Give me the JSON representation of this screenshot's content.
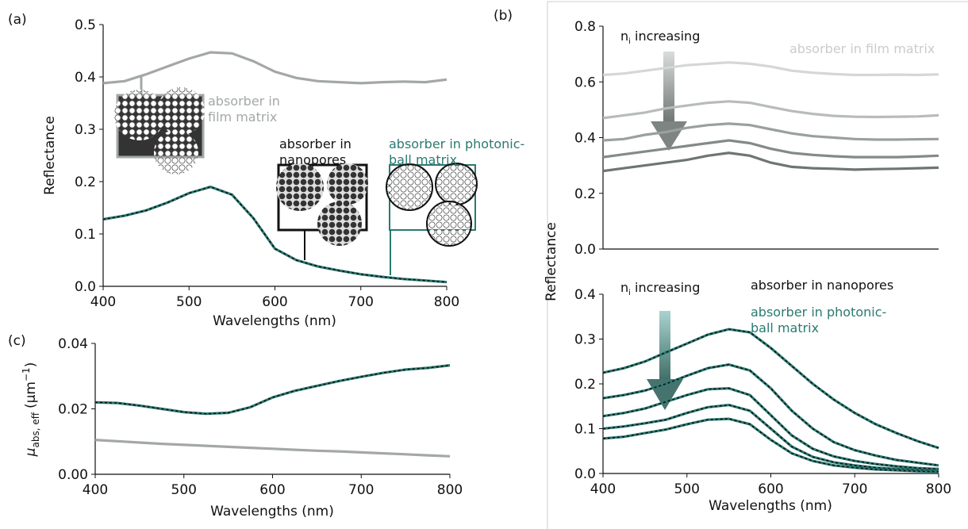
{
  "chart_data": [
    {
      "type": "line",
      "panel_label": "(a)",
      "xlabel": "Wavelengths (nm)",
      "ylabel": "Reflectance",
      "x": [
        400,
        425,
        450,
        475,
        500,
        525,
        550,
        575,
        600,
        625,
        650,
        675,
        700,
        725,
        750,
        775,
        800
      ],
      "xlim": [
        400,
        800
      ],
      "xticks": [
        400,
        500,
        600,
        700,
        800
      ],
      "ylim": [
        0,
        0.5
      ],
      "yticks": [
        {
          "value": 0,
          "label": "0.0"
        },
        0.1,
        0.2,
        0.3,
        0.4,
        0.5
      ],
      "series": [
        {
          "color": "#a3a8a6",
          "values": [
            0.388,
            0.392,
            0.405,
            0.42,
            0.435,
            0.447,
            0.445,
            0.43,
            0.41,
            0.398,
            0.392,
            0.39,
            0.388,
            0.39,
            0.391,
            0.39,
            0.395
          ]
        },
        {
          "color": "#2a7a72",
          "dash_color": "#111111",
          "values": [
            0.128,
            0.135,
            0.145,
            0.16,
            0.178,
            0.19,
            0.175,
            0.13,
            0.072,
            0.05,
            0.038,
            0.03,
            0.023,
            0.018,
            0.014,
            0.011,
            0.008
          ]
        }
      ],
      "annotations": [
        {
          "text": "absorber in film matrix",
          "color": "#a3a8a6"
        },
        {
          "text": "absorber in nanopores",
          "color": "#111111"
        },
        {
          "text": "absorber in photonic-ball matrix",
          "color": "#2a7a72"
        }
      ]
    },
    {
      "type": "line",
      "panel_label": "(c)",
      "xlabel": "Wavelengths (nm)",
      "ylabel": {
        "symbol": "μ",
        "subscript": "abs, eff",
        "unit": "(μm",
        "exponent": "−1",
        "close": ")"
      },
      "x": [
        400,
        425,
        450,
        475,
        500,
        525,
        550,
        575,
        600,
        625,
        650,
        675,
        700,
        725,
        750,
        775,
        800
      ],
      "xlim": [
        400,
        800
      ],
      "xticks": [
        400,
        500,
        600,
        700,
        800
      ],
      "ylim": [
        0,
        0.04
      ],
      "yticks": [
        {
          "value": 0,
          "label": "0.00"
        },
        {
          "value": 0.02,
          "label": "0.02"
        },
        {
          "value": 0.04,
          "label": "0.04"
        }
      ],
      "series": [
        {
          "color": "#a3a8a6",
          "values": [
            0.0105,
            0.0101,
            0.0097,
            0.0093,
            0.009,
            0.0087,
            0.0084,
            0.0081,
            0.0078,
            0.0075,
            0.0072,
            0.007,
            0.0067,
            0.0064,
            0.0061,
            0.0058,
            0.0055
          ]
        },
        {
          "color": "#2a7a72",
          "dash_color": "#111111",
          "values": [
            0.022,
            0.0218,
            0.021,
            0.02,
            0.019,
            0.0185,
            0.0188,
            0.0205,
            0.0235,
            0.0255,
            0.027,
            0.0285,
            0.0298,
            0.031,
            0.032,
            0.0325,
            0.0333
          ]
        }
      ]
    },
    {
      "type": "line",
      "panel_label": "(b)",
      "ylabel": "Reflectance",
      "x": [
        400,
        425,
        450,
        475,
        500,
        525,
        550,
        575,
        600,
        625,
        650,
        675,
        700,
        725,
        750,
        775,
        800
      ],
      "xlim": [
        400,
        800
      ],
      "ylim": [
        0,
        0.8
      ],
      "yticks": [
        {
          "value": 0,
          "label": "0.0"
        },
        0.2,
        0.4,
        0.6,
        0.8
      ],
      "series": [
        {
          "color": "#d3d7d5",
          "values": [
            0.625,
            0.63,
            0.64,
            0.65,
            0.66,
            0.665,
            0.67,
            0.665,
            0.655,
            0.64,
            0.633,
            0.628,
            0.625,
            0.625,
            0.626,
            0.625,
            0.627
          ]
        },
        {
          "color": "#b7bcba",
          "values": [
            0.47,
            0.48,
            0.49,
            0.505,
            0.515,
            0.525,
            0.53,
            0.525,
            0.51,
            0.495,
            0.485,
            0.478,
            0.475,
            0.474,
            0.475,
            0.476,
            0.48
          ]
        },
        {
          "color": "#9aa09d",
          "values": [
            0.39,
            0.395,
            0.41,
            0.42,
            0.435,
            0.445,
            0.45,
            0.445,
            0.43,
            0.415,
            0.405,
            0.4,
            0.395,
            0.393,
            0.393,
            0.394,
            0.395
          ]
        },
        {
          "color": "#838a87",
          "values": [
            0.33,
            0.34,
            0.35,
            0.36,
            0.37,
            0.38,
            0.39,
            0.38,
            0.36,
            0.345,
            0.338,
            0.333,
            0.33,
            0.33,
            0.33,
            0.332,
            0.335
          ]
        },
        {
          "color": "#6e7572",
          "values": [
            0.28,
            0.29,
            0.3,
            0.31,
            0.32,
            0.335,
            0.345,
            0.335,
            0.31,
            0.295,
            0.29,
            0.288,
            0.285,
            0.287,
            0.288,
            0.29,
            0.292
          ]
        }
      ],
      "annotations": [
        {
          "symbol": "n",
          "subscript": "i",
          "text": "increasing",
          "color": "#111111"
        },
        {
          "text": "absorber in film matrix",
          "color": "#c9cdcb"
        }
      ]
    },
    {
      "type": "line",
      "xlabel": "Wavelengths (nm)",
      "x": [
        400,
        425,
        450,
        475,
        500,
        525,
        550,
        575,
        600,
        625,
        650,
        675,
        700,
        725,
        750,
        775,
        800
      ],
      "xlim": [
        400,
        800
      ],
      "xticks": [
        400,
        500,
        600,
        700,
        800
      ],
      "ylim": [
        0,
        0.4
      ],
      "yticks": [
        {
          "value": 0,
          "label": "0.0"
        },
        0.1,
        0.2,
        0.3,
        0.4
      ],
      "series": [
        {
          "color": "#2a7a72",
          "dash_color": "#111111",
          "values": [
            0.225,
            0.235,
            0.25,
            0.27,
            0.29,
            0.31,
            0.322,
            0.315,
            0.28,
            0.24,
            0.2,
            0.165,
            0.135,
            0.11,
            0.09,
            0.072,
            0.057
          ]
        },
        {
          "color": "#2a7a72",
          "dash_color": "#111111",
          "values": [
            0.168,
            0.175,
            0.185,
            0.2,
            0.218,
            0.235,
            0.243,
            0.23,
            0.19,
            0.14,
            0.1,
            0.07,
            0.052,
            0.04,
            0.03,
            0.024,
            0.018
          ]
        },
        {
          "color": "#2a7a72",
          "dash_color": "#111111",
          "values": [
            0.128,
            0.135,
            0.145,
            0.16,
            0.175,
            0.188,
            0.19,
            0.175,
            0.13,
            0.085,
            0.055,
            0.038,
            0.028,
            0.021,
            0.016,
            0.012,
            0.01
          ]
        },
        {
          "color": "#2a7a72",
          "dash_color": "#111111",
          "values": [
            0.1,
            0.105,
            0.112,
            0.12,
            0.135,
            0.148,
            0.153,
            0.14,
            0.1,
            0.06,
            0.037,
            0.025,
            0.018,
            0.013,
            0.01,
            0.008,
            0.006
          ]
        },
        {
          "color": "#2a7a72",
          "dash_color": "#111111",
          "values": [
            0.078,
            0.082,
            0.09,
            0.098,
            0.11,
            0.12,
            0.122,
            0.11,
            0.075,
            0.045,
            0.028,
            0.018,
            0.013,
            0.009,
            0.007,
            0.005,
            0.004
          ]
        }
      ],
      "annotations": [
        {
          "symbol": "n",
          "subscript": "i",
          "text": "increasing",
          "color": "#111111"
        },
        {
          "text": "absorber in nanopores",
          "color": "#111111"
        },
        {
          "text": "absorber in photonic-ball matrix",
          "color": "#2a7a72"
        }
      ]
    }
  ]
}
